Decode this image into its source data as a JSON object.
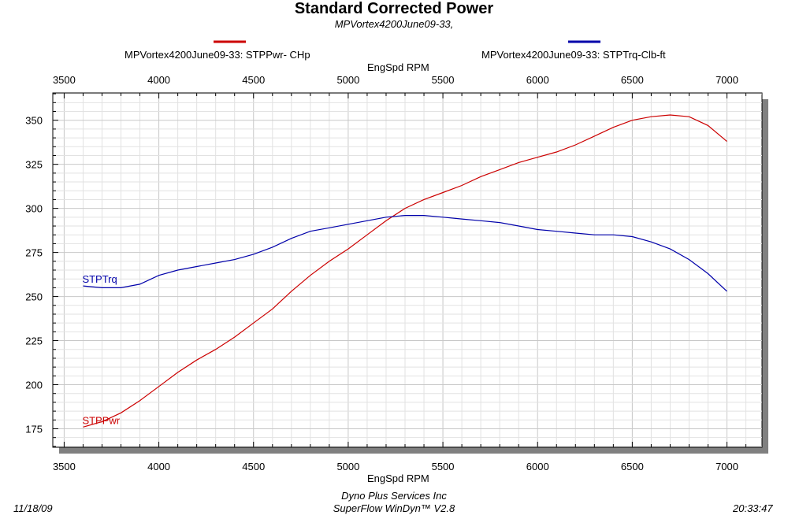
{
  "header": {
    "title": "Standard Corrected Power",
    "subtitle": "MPVortex4200June09-33,"
  },
  "legend": [
    {
      "label": "MPVortex4200June09-33: STPPwr- CHp",
      "color": "#cc0000"
    },
    {
      "label": "MPVortex4200June09-33: STPTrq-Clb-ft",
      "color": "#0000aa"
    }
  ],
  "footer": {
    "date": "11/18/09",
    "company": "Dyno Plus Services Inc",
    "software": "SuperFlow WinDyn™ V2.8",
    "time": "20:33:47"
  },
  "chart_data": {
    "type": "line",
    "title": "Standard Corrected Power",
    "subtitle": "MPVortex4200June09-33,",
    "xlabel": "EngSpd  RPM",
    "ylabel": "",
    "xlim": [
      3500,
      7000
    ],
    "ylim": [
      165,
      360
    ],
    "x_ticks": [
      3500,
      4000,
      4500,
      5000,
      5500,
      6000,
      6500,
      7000
    ],
    "y_ticks": [
      175,
      200,
      225,
      250,
      275,
      300,
      325,
      350
    ],
    "grid": true,
    "legend_position": "top",
    "series": [
      {
        "name": "MPVortex4200June09-33: STPPwr- CHp",
        "short_label": "STPPwr",
        "color": "#cc0000",
        "x": [
          3600,
          3700,
          3800,
          3900,
          4000,
          4100,
          4200,
          4300,
          4400,
          4500,
          4600,
          4700,
          4800,
          4900,
          5000,
          5100,
          5200,
          5300,
          5400,
          5500,
          5600,
          5700,
          5800,
          5900,
          6000,
          6100,
          6200,
          6300,
          6400,
          6500,
          6600,
          6700,
          6800,
          6900,
          7000
        ],
        "values": [
          176,
          179,
          184,
          191,
          199,
          207,
          214,
          220,
          227,
          235,
          243,
          253,
          262,
          270,
          277,
          285,
          293,
          300,
          305,
          309,
          313,
          318,
          322,
          326,
          329,
          332,
          336,
          341,
          346,
          350,
          352,
          353,
          352,
          347,
          338
        ]
      },
      {
        "name": "MPVortex4200June09-33: STPTrq-Clb-ft",
        "short_label": "STPTrq",
        "color": "#0000aa",
        "x": [
          3600,
          3700,
          3800,
          3900,
          4000,
          4100,
          4200,
          4300,
          4400,
          4500,
          4600,
          4700,
          4800,
          4900,
          5000,
          5100,
          5200,
          5300,
          5400,
          5500,
          5600,
          5700,
          5800,
          5900,
          6000,
          6100,
          6200,
          6300,
          6400,
          6500,
          6600,
          6700,
          6800,
          6900,
          7000
        ],
        "values": [
          256,
          255,
          255,
          257,
          262,
          265,
          267,
          269,
          271,
          274,
          278,
          283,
          287,
          289,
          291,
          293,
          295,
          296,
          296,
          295,
          294,
          293,
          292,
          290,
          288,
          287,
          286,
          285,
          285,
          284,
          281,
          277,
          271,
          263,
          253
        ]
      }
    ]
  }
}
